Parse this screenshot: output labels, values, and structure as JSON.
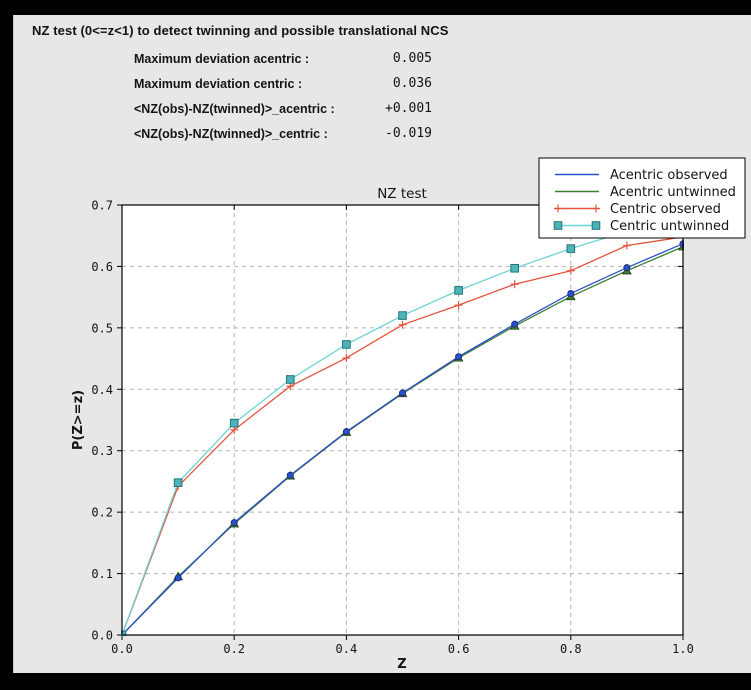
{
  "window": {
    "title": "NZ test (0<=z<1) to detect twinning and possible translational NCS"
  },
  "stats": {
    "rows": [
      {
        "label": "Maximum deviation acentric :",
        "value": "0.005"
      },
      {
        "label": "Maximum deviation centric :",
        "value": "0.036"
      },
      {
        "label": "<NZ(obs)-NZ(twinned)>_acentric :",
        "value": "+0.001"
      },
      {
        "label": "<NZ(obs)-NZ(twinned)>_centric :",
        "value": "-0.019"
      }
    ]
  },
  "colors": {
    "frame": "#000000",
    "panel_bg": "#e7e7e7",
    "plot_bg": "#ffffff",
    "grid": "#b3b3b3",
    "axis": "#000000",
    "acentric_observed": "#2b50c8",
    "acentric_untwinned": "#3f7d32",
    "centric_observed": "#e4543f",
    "centric_untwinned": "#6fd2d6",
    "centric_untwinned_marker": "#4fb3ba",
    "centric_untwinned_marker_edge": "#1f7478"
  },
  "chart_data": {
    "type": "line",
    "title": "NZ test",
    "xlabel": "Z",
    "ylabel": "P(Z>=z)",
    "xlim": [
      0.0,
      1.0
    ],
    "ylim": [
      0.0,
      0.7
    ],
    "xticks": [
      0.0,
      0.2,
      0.4,
      0.6,
      0.8,
      1.0
    ],
    "yticks": [
      0.0,
      0.1,
      0.2,
      0.3,
      0.4,
      0.5,
      0.6,
      0.7
    ],
    "grid": true,
    "grid_style": "dashed",
    "legend_position": "upper right",
    "x": [
      0.0,
      0.1,
      0.2,
      0.3,
      0.4,
      0.5,
      0.6,
      0.7,
      0.8,
      0.9,
      1.0
    ],
    "series": [
      {
        "name": "Acentric observed",
        "color": "#2b50c8",
        "marker": "circle",
        "values": [
          0.0,
          0.093,
          0.183,
          0.26,
          0.331,
          0.394,
          0.453,
          0.506,
          0.556,
          0.598,
          0.637
        ]
      },
      {
        "name": "Acentric untwinned",
        "color": "#3f7d32",
        "marker": "triangle",
        "values": [
          0.0,
          0.095,
          0.181,
          0.259,
          0.33,
          0.393,
          0.451,
          0.503,
          0.551,
          0.593,
          0.632
        ]
      },
      {
        "name": "Centric observed",
        "color": "#e4543f",
        "marker": "plus",
        "values": [
          0.0,
          0.242,
          0.334,
          0.405,
          0.451,
          0.505,
          0.537,
          0.571,
          0.593,
          0.634,
          0.648
        ]
      },
      {
        "name": "Centric untwinned",
        "color": "#6fd2d6",
        "marker": "square",
        "marker_fill": "#4fb3ba",
        "marker_edge": "#1f7478",
        "values": [
          0.0,
          0.248,
          0.345,
          0.416,
          0.473,
          0.52,
          0.561,
          0.597,
          0.629,
          0.657,
          0.683
        ]
      }
    ]
  }
}
